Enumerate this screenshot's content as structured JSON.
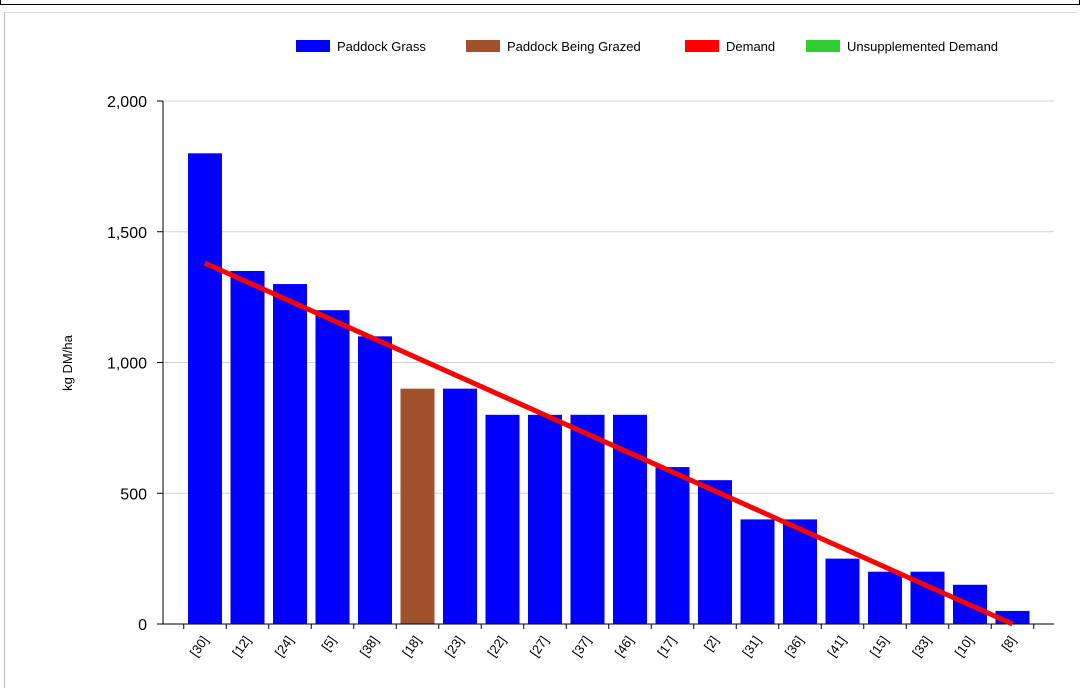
{
  "chart_data": {
    "type": "bar",
    "ylabel": "kg DM/ha",
    "ylim": [
      0,
      2000
    ],
    "yticks": [
      0,
      500,
      1000,
      1500,
      2000
    ],
    "ytick_labels": [
      "0",
      "500",
      "1,000",
      "1,500",
      "2,000"
    ],
    "grid": true,
    "categories": [
      "[30]",
      "[12]",
      "[24]",
      "[5]",
      "[38]",
      "[18]",
      "[23]",
      "[22]",
      "[27]",
      "[37]",
      "[46]",
      "[17]",
      "[2]",
      "[31]",
      "[36]",
      "[41]",
      "[15]",
      "[33]",
      "[10]",
      "[8]"
    ],
    "values": [
      1800,
      1350,
      1300,
      1200,
      1100,
      900,
      900,
      800,
      800,
      800,
      800,
      600,
      550,
      400,
      400,
      250,
      200,
      200,
      150,
      50
    ],
    "bar_series": [
      {
        "name": "Paddock Grass",
        "color": "#0000ff"
      },
      {
        "name": "Paddock Being Grazed",
        "color": "#a0522d",
        "category_index": 5
      }
    ],
    "demand_line": {
      "name": "Demand",
      "color": "#ff0000",
      "start": {
        "category_index": 0,
        "value": 1380
      },
      "end": {
        "category_index": 19,
        "value": 0
      }
    },
    "unsupplemented_demand": {
      "name": "Unsupplemented Demand",
      "color": "#32cd32"
    },
    "legend": {
      "position": "top-right",
      "items": [
        {
          "label": "Paddock Grass",
          "color": "#0000ff"
        },
        {
          "label": "Paddock Being Grazed",
          "color": "#a0522d"
        },
        {
          "label": "Demand",
          "color": "#ff0000"
        },
        {
          "label": "Unsupplemented Demand",
          "color": "#32cd32"
        }
      ]
    }
  }
}
